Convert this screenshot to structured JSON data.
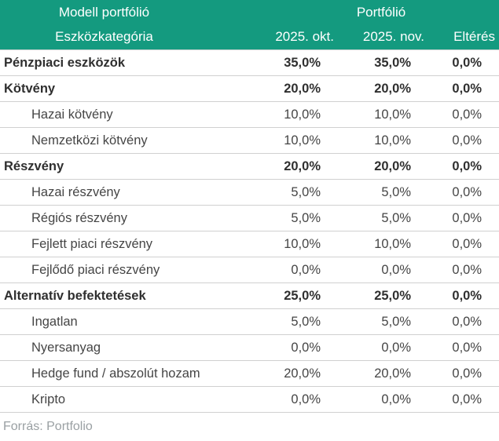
{
  "header": {
    "group_left": "Modell portfólió",
    "group_right": "Portfólió",
    "col_category": "Eszközkategória",
    "col_oct": "2025. okt.",
    "col_nov": "2025. nov.",
    "col_diff": "Eltérés"
  },
  "table": {
    "rows": [
      {
        "label": "Pénzpiaci eszközök",
        "okt": "35,0%",
        "nov": "35,0%",
        "diff": "0,0%",
        "bold": true,
        "indent": false
      },
      {
        "label": "Kötvény",
        "okt": "20,0%",
        "nov": "20,0%",
        "diff": "0,0%",
        "bold": true,
        "indent": false
      },
      {
        "label": "Hazai kötvény",
        "okt": "10,0%",
        "nov": "10,0%",
        "diff": "0,0%",
        "bold": false,
        "indent": true
      },
      {
        "label": "Nemzetközi kötvény",
        "okt": "10,0%",
        "nov": "10,0%",
        "diff": "0,0%",
        "bold": false,
        "indent": true
      },
      {
        "label": "Részvény",
        "okt": "20,0%",
        "nov": "20,0%",
        "diff": "0,0%",
        "bold": true,
        "indent": false
      },
      {
        "label": "Hazai részvény",
        "okt": "5,0%",
        "nov": "5,0%",
        "diff": "0,0%",
        "bold": false,
        "indent": true
      },
      {
        "label": "Régiós részvény",
        "okt": "5,0%",
        "nov": "5,0%",
        "diff": "0,0%",
        "bold": false,
        "indent": true
      },
      {
        "label": "Fejlett piaci részvény",
        "okt": "10,0%",
        "nov": "10,0%",
        "diff": "0,0%",
        "bold": false,
        "indent": true
      },
      {
        "label": "Fejlődő piaci részvény",
        "okt": "0,0%",
        "nov": "0,0%",
        "diff": "0,0%",
        "bold": false,
        "indent": true
      },
      {
        "label": "Alternatív befektetések",
        "okt": "25,0%",
        "nov": "25,0%",
        "diff": "0,0%",
        "bold": true,
        "indent": false
      },
      {
        "label": "Ingatlan",
        "okt": "5,0%",
        "nov": "5,0%",
        "diff": "0,0%",
        "bold": false,
        "indent": true
      },
      {
        "label": "Nyersanyag",
        "okt": "0,0%",
        "nov": "0,0%",
        "diff": "0,0%",
        "bold": false,
        "indent": true
      },
      {
        "label": "Hedge fund / abszolút hozam",
        "okt": "20,0%",
        "nov": "20,0%",
        "diff": "0,0%",
        "bold": false,
        "indent": true
      },
      {
        "label": "Kripto",
        "okt": "0,0%",
        "nov": "0,0%",
        "diff": "0,0%",
        "bold": false,
        "indent": true
      }
    ]
  },
  "footer": {
    "source": "Forrás: Portfolio"
  },
  "colors": {
    "header_bg": "#149a7f",
    "header_text": "#ffffff",
    "body_text": "#454545",
    "bold_text": "#2f2f2f",
    "separator": "#d0d0d0",
    "footer_text": "#9aa0a3"
  },
  "chart_data": {
    "type": "table",
    "title": "Modell portfólió / Portfólió",
    "columns": [
      "Eszközkategória",
      "2025. okt.",
      "2025. nov.",
      "Eltérés"
    ],
    "rows": [
      [
        "Pénzpiaci eszközök",
        35.0,
        35.0,
        0.0
      ],
      [
        "Kötvény",
        20.0,
        20.0,
        0.0
      ],
      [
        "Hazai kötvény",
        10.0,
        10.0,
        0.0
      ],
      [
        "Nemzetközi kötvény",
        10.0,
        10.0,
        0.0
      ],
      [
        "Részvény",
        20.0,
        20.0,
        0.0
      ],
      [
        "Hazai részvény",
        5.0,
        5.0,
        0.0
      ],
      [
        "Régiós részvény",
        5.0,
        5.0,
        0.0
      ],
      [
        "Fejlett piaci részvény",
        10.0,
        10.0,
        0.0
      ],
      [
        "Fejlődő piaci részvény",
        0.0,
        0.0,
        0.0
      ],
      [
        "Alternatív befektetések",
        25.0,
        25.0,
        0.0
      ],
      [
        "Ingatlan",
        5.0,
        5.0,
        0.0
      ],
      [
        "Nyersanyag",
        0.0,
        0.0,
        0.0
      ],
      [
        "Hedge fund / abszolút hozam",
        20.0,
        20.0,
        0.0
      ],
      [
        "Kripto",
        0.0,
        0.0,
        0.0
      ]
    ],
    "units": "percent",
    "section_rows": [
      "Pénzpiaci eszközök",
      "Kötvény",
      "Részvény",
      "Alternatív befektetések"
    ],
    "source": "Forrás: Portfolio"
  }
}
